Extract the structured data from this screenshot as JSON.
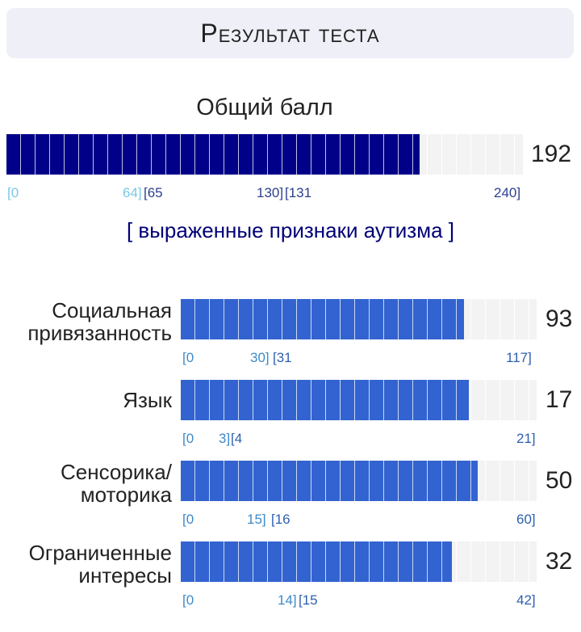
{
  "header": {
    "title": "Результат теста"
  },
  "total": {
    "label": "Общий балл",
    "score": "192",
    "value": 192,
    "max": 240,
    "ticks": [
      {
        "text": "[0",
        "pos": 0
      },
      {
        "text": "64]",
        "pos": 64
      },
      {
        "text": "[65",
        "pos": 65
      },
      {
        "text": "130]",
        "pos": 130
      },
      {
        "text": "[131",
        "pos": 131
      },
      {
        "text": "240]",
        "pos": 240
      }
    ],
    "verdict": "[ выраженные признаки аутизма ]"
  },
  "subscales": [
    {
      "label": "Социальная привязанность",
      "score": "93",
      "value": 93,
      "max": 117,
      "ticks": [
        "[0",
        "30]",
        "[31",
        "117]"
      ]
    },
    {
      "label": "Язык",
      "score": "17",
      "value": 17,
      "max": 21,
      "ticks": [
        "[0",
        "3]",
        "[4",
        "21]"
      ]
    },
    {
      "label": "Сенсорика/ моторика",
      "score": "50",
      "value": 50,
      "max": 60,
      "ticks": [
        "[0",
        "15]",
        "[16",
        "60]"
      ]
    },
    {
      "label": "Ограниченные интересы",
      "score": "32",
      "value": 32,
      "max": 42,
      "ticks": [
        "[0",
        "14]",
        "[15",
        "42]"
      ]
    }
  ],
  "colors": {
    "total_fill": "#000088",
    "sub_fill": "#3263d0",
    "verdict": "#000077",
    "header_bg": "#eeeff7"
  }
}
